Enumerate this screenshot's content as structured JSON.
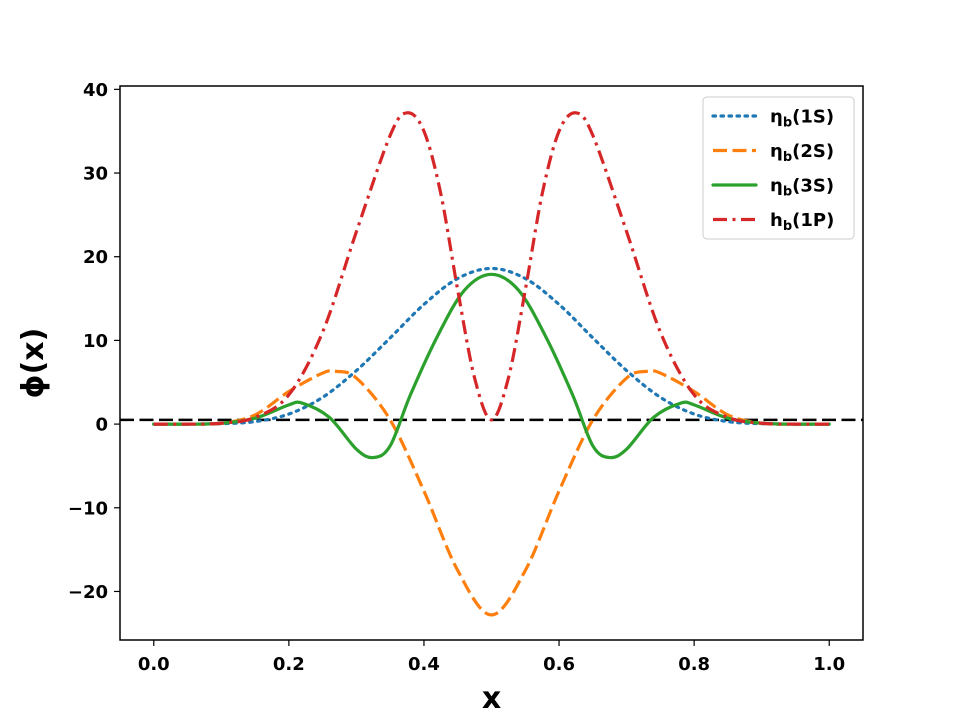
{
  "chart_data": {
    "type": "line",
    "title": "",
    "xlabel": "x",
    "ylabel": "ϕ(x)",
    "xlim": [
      -0.05,
      1.05
    ],
    "ylim": [
      -25.8,
      40.4
    ],
    "xticks": [
      0.0,
      0.2,
      0.4,
      0.6,
      0.8,
      1.0
    ],
    "xtick_labels": [
      "0.0",
      "0.2",
      "0.4",
      "0.6",
      "0.8",
      "1.0"
    ],
    "yticks": [
      -20,
      -10,
      0,
      10,
      20,
      30,
      40
    ],
    "ytick_labels": [
      "−20",
      "−10",
      "0",
      "10",
      "20",
      "30",
      "40"
    ],
    "grid": false,
    "legend_position": "top-right",
    "reference_line": {
      "y": 0.5,
      "style": "dashed",
      "color": "#000000"
    },
    "series": [
      {
        "name": "ηb(1S)",
        "legend": {
          "main": "η",
          "sub": "b",
          "tail": "(1S)"
        },
        "color": "#1f77b4",
        "style": "dotted",
        "x": [
          0.0,
          0.05,
          0.1,
          0.15,
          0.2,
          0.25,
          0.3,
          0.35,
          0.4,
          0.45,
          0.5,
          0.55,
          0.6,
          0.65,
          0.7,
          0.75,
          0.8,
          0.85,
          0.9,
          0.95,
          1.0
        ],
        "y": [
          0.0,
          0.0,
          0.05,
          0.3,
          1.2,
          3.2,
          6.4,
          10.3,
          14.3,
          17.4,
          18.6,
          17.4,
          14.3,
          10.3,
          6.4,
          3.2,
          1.2,
          0.3,
          0.05,
          0.0,
          0.0
        ]
      },
      {
        "name": "ηb(2S)",
        "legend": {
          "main": "η",
          "sub": "b",
          "tail": "(2S)"
        },
        "color": "#ff7f0e",
        "style": "dashed",
        "x": [
          0.0,
          0.05,
          0.1,
          0.15,
          0.2,
          0.25,
          0.27,
          0.3,
          0.35,
          0.4,
          0.45,
          0.5,
          0.55,
          0.6,
          0.65,
          0.7,
          0.73,
          0.75,
          0.8,
          0.85,
          0.9,
          0.95,
          1.0
        ],
        "y": [
          0.0,
          0.0,
          0.1,
          1.1,
          3.9,
          6.1,
          6.3,
          5.5,
          0.5,
          -8.0,
          -17.5,
          -22.8,
          -17.5,
          -8.0,
          0.5,
          5.5,
          6.3,
          6.1,
          3.9,
          1.1,
          0.1,
          0.0,
          0.0
        ]
      },
      {
        "name": "ηb(3S)",
        "legend": {
          "main": "η",
          "sub": "b",
          "tail": "(3S)"
        },
        "color": "#2ca02c",
        "style": "solid",
        "x": [
          0.0,
          0.05,
          0.1,
          0.15,
          0.2,
          0.22,
          0.26,
          0.3,
          0.325,
          0.35,
          0.38,
          0.42,
          0.46,
          0.5,
          0.54,
          0.58,
          0.62,
          0.65,
          0.675,
          0.7,
          0.74,
          0.78,
          0.8,
          0.85,
          0.9,
          0.95,
          1.0
        ],
        "y": [
          0.0,
          0.0,
          0.1,
          0.7,
          2.3,
          2.5,
          0.8,
          -3.0,
          -4.0,
          -2.6,
          3.5,
          10.5,
          16.0,
          17.9,
          16.0,
          10.5,
          3.5,
          -2.6,
          -4.0,
          -3.0,
          0.8,
          2.5,
          2.3,
          0.7,
          0.1,
          0.0,
          0.0
        ]
      },
      {
        "name": "hb(1P)",
        "legend": {
          "main": "h",
          "sub": "b",
          "tail": "(1P)"
        },
        "color": "#d62728",
        "style": "dashdot",
        "x": [
          0.0,
          0.05,
          0.1,
          0.15,
          0.2,
          0.25,
          0.3,
          0.35,
          0.375,
          0.4,
          0.425,
          0.45,
          0.475,
          0.5,
          0.525,
          0.55,
          0.575,
          0.6,
          0.625,
          0.65,
          0.7,
          0.75,
          0.8,
          0.85,
          0.9,
          0.95,
          1.0
        ],
        "y": [
          0.0,
          0.0,
          0.1,
          0.8,
          3.5,
          11.0,
          23.0,
          34.5,
          37.2,
          35.0,
          27.5,
          16.0,
          5.5,
          0.5,
          5.5,
          16.0,
          27.5,
          35.0,
          37.2,
          34.5,
          23.0,
          11.0,
          3.5,
          0.8,
          0.1,
          0.0,
          0.0
        ]
      }
    ]
  }
}
